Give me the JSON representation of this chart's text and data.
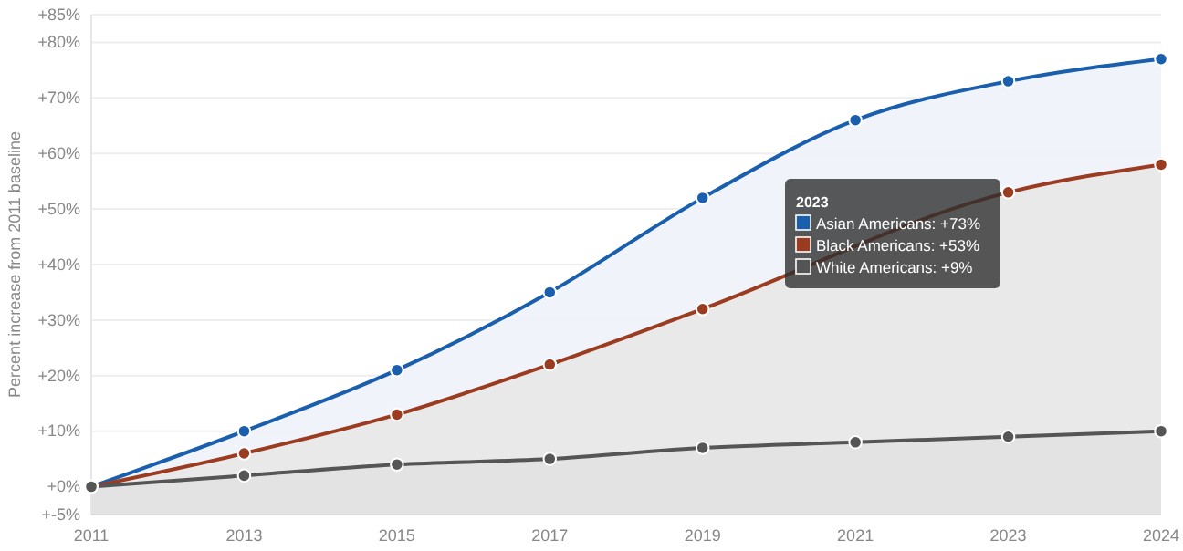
{
  "chart_data": {
    "type": "area",
    "ylabel": "Percent increase from 2011 baseline",
    "categories": [
      "2011",
      "2013",
      "2015",
      "2017",
      "2019",
      "2021",
      "2023",
      "2024"
    ],
    "series": [
      {
        "color": "#1a5fad",
        "values": [
          0,
          10,
          21,
          35,
          52,
          66,
          73,
          77
        ]
      },
      {
        "color": "#9b3b20",
        "values": [
          0,
          6,
          13,
          22,
          32,
          null,
          53,
          58
        ]
      },
      {
        "color": "#555555",
        "values": [
          0,
          2,
          4,
          5,
          7,
          8,
          9,
          10
        ]
      }
    ],
    "ylim": [
      -5,
      85
    ],
    "yticks": [
      {
        "value": -5,
        "label": "+-5%"
      },
      {
        "value": 0,
        "label": "+0%"
      },
      {
        "value": 10,
        "label": "+10%"
      },
      {
        "value": 20,
        "label": "+20%"
      },
      {
        "value": 30,
        "label": "+30%"
      },
      {
        "value": 40,
        "label": "+40%"
      },
      {
        "value": 50,
        "label": "+50%"
      },
      {
        "value": 60,
        "label": "+60%"
      },
      {
        "value": 70,
        "label": "+70%"
      },
      {
        "value": 80,
        "label": "+80%"
      },
      {
        "value": 85,
        "label": "+85%"
      }
    ],
    "grid": "y",
    "marker": "circle",
    "annotations": [
      "2023",
      "Asian Americans: +73%",
      "Black Americans: +53%",
      "White Americans: +9%"
    ]
  }
}
